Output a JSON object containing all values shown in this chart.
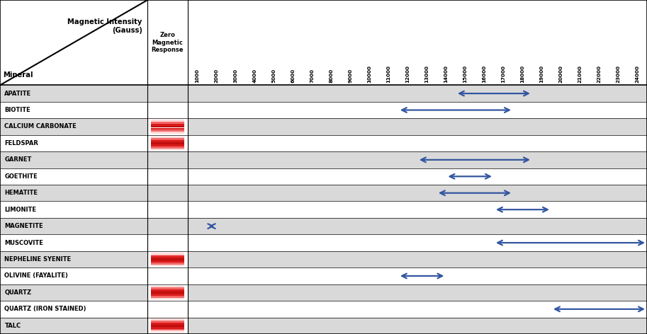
{
  "minerals": [
    "APATITE",
    "BIOTITE",
    "CALCIUM CARBONATE",
    "FELDSPAR",
    "GARNET",
    "GOETHITE",
    "HEMATITE",
    "LIMONITE",
    "MAGNETITE",
    "MUSCOVITE",
    "NEPHELINE SYENITE",
    "OLIVINE (FAYALITE)",
    "QUARTZ",
    "QUARTZ (IRON STAINED)",
    "TALC"
  ],
  "has_zero_response": [
    false,
    false,
    true,
    true,
    false,
    false,
    false,
    false,
    false,
    false,
    true,
    false,
    true,
    false,
    true
  ],
  "arrows": [
    [
      14000,
      18000
    ],
    [
      11000,
      17000
    ],
    null,
    null,
    [
      12000,
      18000
    ],
    [
      13500,
      16000
    ],
    [
      13000,
      17000
    ],
    [
      16000,
      19000
    ],
    [
      1000,
      1500
    ],
    [
      16000,
      24000
    ],
    null,
    [
      11000,
      13500
    ],
    null,
    [
      19000,
      24000
    ],
    null
  ],
  "col_labels": [
    "1000",
    "2000",
    "3000",
    "4000",
    "5000",
    "6000",
    "7000",
    "8000",
    "9000",
    "10000",
    "11000",
    "12000",
    "13000",
    "14000",
    "15000",
    "16000",
    "17000",
    "18000",
    "19000",
    "20000",
    "21000",
    "22000",
    "23000",
    "24000"
  ],
  "x_max": 24000,
  "row_colors": [
    "#d9d9d9",
    "#ffffff"
  ],
  "arrow_color": "#3356a0",
  "header_bg": "#ffffff",
  "font_color": "#000000"
}
